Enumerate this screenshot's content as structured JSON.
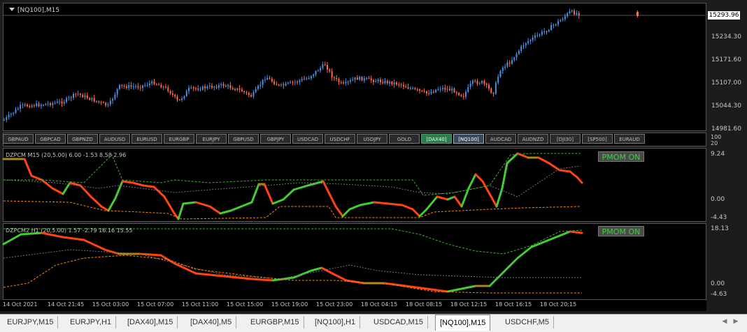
{
  "chart_title": "[NQ100],M15",
  "current_price": "15293.96",
  "price_scale": [
    "15234.30",
    "15171.60",
    "15107.00",
    "15044.30",
    "14981.60"
  ],
  "panel_scale": [
    "100",
    "20"
  ],
  "symbol_buttons": [
    "GBPAUD",
    "GBPCAD",
    "GBPNZD",
    "AUDUSD",
    "EURUSD",
    "EURGBP",
    "EURJPY",
    "GBPUSD",
    "GBPJPY",
    "USDCAD",
    "USDCHF",
    "USDJPY",
    "GOLD",
    "[DAX40]",
    "[NQ100]",
    "AUDCAD",
    "AUDNZD",
    "[DJI30]",
    "[SP500]",
    "EURAUD"
  ],
  "indicator1": {
    "title": "DZPCM M15 (20,5.00) 6.00 -1.53 8.58 2.96",
    "badge": "PMOM ON",
    "scale": [
      "9.24",
      "0.00",
      "-4.43"
    ]
  },
  "indicator2": {
    "title": "DZPCM2 H1 (20,5.00) 1.57 -2.79 16.16 15.55",
    "badge": "PMOM ON",
    "scale": [
      "18.13",
      "0.00",
      "-4.63"
    ]
  },
  "time_labels": [
    "14 Oct 2021",
    "14 Oct 21:45",
    "15 Oct 03:00",
    "15 Oct 07:00",
    "15 Oct 11:00",
    "15 Oct 15:00",
    "15 Oct 19:00",
    "15 Oct 23:00",
    "18 Oct 04:15",
    "18 Oct 08:15",
    "18 Oct 12:15",
    "18 Oct 16:15",
    "18 Oct 20:15"
  ],
  "tabs": [
    "EURJPY,M15",
    "EURJPY,H1",
    "[DAX40],M15",
    "[DAX40],M5",
    "EURGBP,M15",
    "[NQ100],H1",
    "USDCAD,M15",
    "[NQ100],M15",
    "USDCHF,M5"
  ],
  "active_tab": "[NQ100],M15",
  "colors": {
    "bull": "#4a90e2",
    "bear": "#ff6b4a",
    "ind_green": "#44cc33",
    "ind_red": "#ff4411",
    "ind_mid": "#a88a20",
    "dash_green": "#33bb22",
    "dash_orange": "#ff8800",
    "dash_gray": "#777777"
  }
}
